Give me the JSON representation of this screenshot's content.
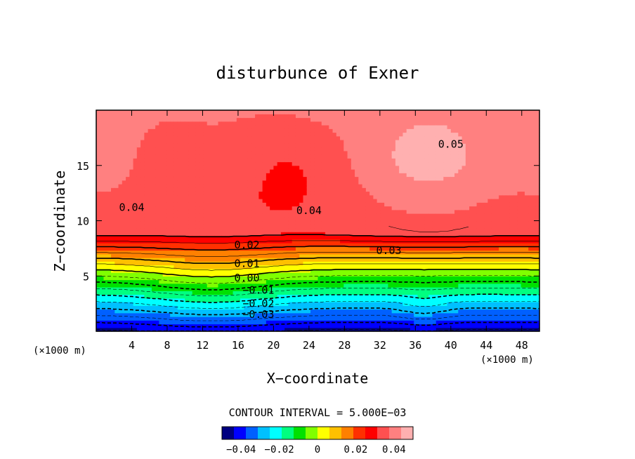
{
  "chart_data": {
    "type": "heatmap",
    "title": "disturbunce of Exner",
    "xlabel": "X−coordinate",
    "ylabel": "Z−coordinate",
    "x_unit_left": "(×1000 m)",
    "x_unit_right": "(×1000 m)",
    "xlim": [
      0,
      50
    ],
    "ylim": [
      0,
      20
    ],
    "x_ticks": [
      4,
      8,
      12,
      16,
      20,
      24,
      28,
      32,
      36,
      40,
      44,
      48
    ],
    "y_ticks": [
      5,
      10,
      15
    ],
    "contour_interval_text": "CONTOUR INTERVAL = 5.000E−03",
    "contour_interval": 0.005,
    "contour_labels": [
      {
        "text": "0.05",
        "x": 40,
        "z": 16.6
      },
      {
        "text": "0.04",
        "x": 4,
        "z": 10.9
      },
      {
        "text": "0.04",
        "x": 24,
        "z": 10.6
      },
      {
        "text": "0.03",
        "x": 33,
        "z": 7.0
      },
      {
        "text": "0.02",
        "x": 17,
        "z": 7.5
      },
      {
        "text": "0.01",
        "x": 17,
        "z": 5.8
      },
      {
        "text": "0.00",
        "x": 17,
        "z": 4.5
      },
      {
        "text": "−0.01",
        "x": 18.3,
        "z": 3.4
      },
      {
        "text": "−0.02",
        "x": 18.3,
        "z": 2.2
      },
      {
        "text": "−0.03",
        "x": 18.3,
        "z": 1.2
      }
    ],
    "colorbar": {
      "min": -0.05,
      "max": 0.05,
      "ticks": [
        -0.04,
        -0.02,
        0,
        0.02,
        0.04
      ],
      "tick_labels": [
        "−0.04",
        "−0.02",
        "0",
        "0.02",
        "0.04"
      ]
    },
    "field_description": "Exner pressure disturbance; minimum ~-0.045 at z=0, rising to ~0.035 at z~9 km, maxima >0.05 near x=36, z=15",
    "colors": [
      "#000080",
      "#0000ff",
      "#0060ff",
      "#00c0ff",
      "#00ffff",
      "#00ff80",
      "#00e000",
      "#80ff00",
      "#ffff00",
      "#ffc000",
      "#ff8000",
      "#ff3000",
      "#ff0000",
      "#ff5050",
      "#ff8080",
      "#ffb0b0"
    ]
  }
}
